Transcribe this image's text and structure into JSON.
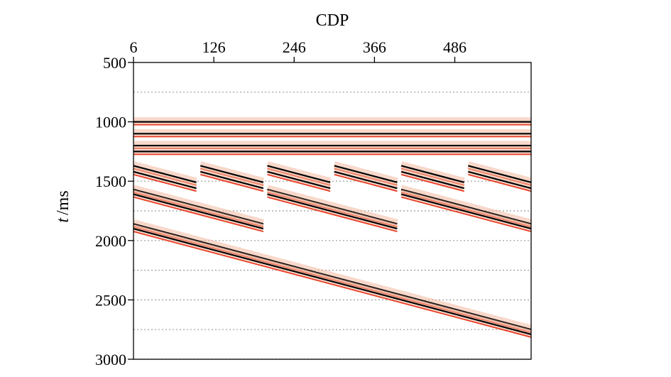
{
  "chart_data": {
    "type": "line",
    "title": "",
    "x_axis": {
      "label": "CDP",
      "position": "top",
      "ticks": [
        6,
        126,
        246,
        366,
        486
      ],
      "range": [
        6,
        600
      ]
    },
    "y_axis": {
      "label_italic": "t",
      "label_rest": "/ms",
      "ticks": [
        500,
        1000,
        1500,
        2000,
        2500,
        3000
      ],
      "range": [
        500,
        3000
      ],
      "inverted": true
    },
    "gridlines_y": [
      750,
      1250,
      1500,
      1750,
      2000,
      2250,
      2500,
      2750,
      3000
    ],
    "event_colors": {
      "primary": "#000000",
      "secondary": "#e8432a",
      "halo": "#f2b9a0"
    },
    "events": [
      {
        "x": [
          6,
          600
        ],
        "y": [
          1000,
          1000
        ]
      },
      {
        "x": [
          6,
          600
        ],
        "y": [
          1100,
          1100
        ]
      },
      {
        "x": [
          6,
          600
        ],
        "y": [
          1200,
          1200
        ]
      },
      {
        "x": [
          6,
          600
        ],
        "y": [
          1250,
          1250
        ]
      },
      {
        "x": [
          6,
          100
        ],
        "y": [
          1370,
          1510
        ]
      },
      {
        "x": [
          106,
          200
        ],
        "y": [
          1370,
          1510
        ]
      },
      {
        "x": [
          206,
          300
        ],
        "y": [
          1370,
          1510
        ]
      },
      {
        "x": [
          306,
          400
        ],
        "y": [
          1370,
          1510
        ]
      },
      {
        "x": [
          406,
          500
        ],
        "y": [
          1370,
          1510
        ]
      },
      {
        "x": [
          506,
          600
        ],
        "y": [
          1370,
          1510
        ]
      },
      {
        "x": [
          6,
          100
        ],
        "y": [
          1420,
          1560
        ]
      },
      {
        "x": [
          106,
          200
        ],
        "y": [
          1420,
          1560
        ]
      },
      {
        "x": [
          206,
          300
        ],
        "y": [
          1420,
          1560
        ]
      },
      {
        "x": [
          306,
          400
        ],
        "y": [
          1420,
          1560
        ]
      },
      {
        "x": [
          406,
          500
        ],
        "y": [
          1420,
          1560
        ]
      },
      {
        "x": [
          506,
          600
        ],
        "y": [
          1420,
          1560
        ]
      },
      {
        "x": [
          6,
          200
        ],
        "y": [
          1570,
          1860
        ]
      },
      {
        "x": [
          206,
          400
        ],
        "y": [
          1570,
          1860
        ]
      },
      {
        "x": [
          406,
          600
        ],
        "y": [
          1570,
          1860
        ]
      },
      {
        "x": [
          6,
          200
        ],
        "y": [
          1610,
          1900
        ]
      },
      {
        "x": [
          206,
          400
        ],
        "y": [
          1610,
          1900
        ]
      },
      {
        "x": [
          406,
          600
        ],
        "y": [
          1610,
          1900
        ]
      },
      {
        "x": [
          6,
          600
        ],
        "y": [
          1860,
          2750
        ]
      },
      {
        "x": [
          6,
          600
        ],
        "y": [
          1900,
          2790
        ]
      }
    ]
  }
}
